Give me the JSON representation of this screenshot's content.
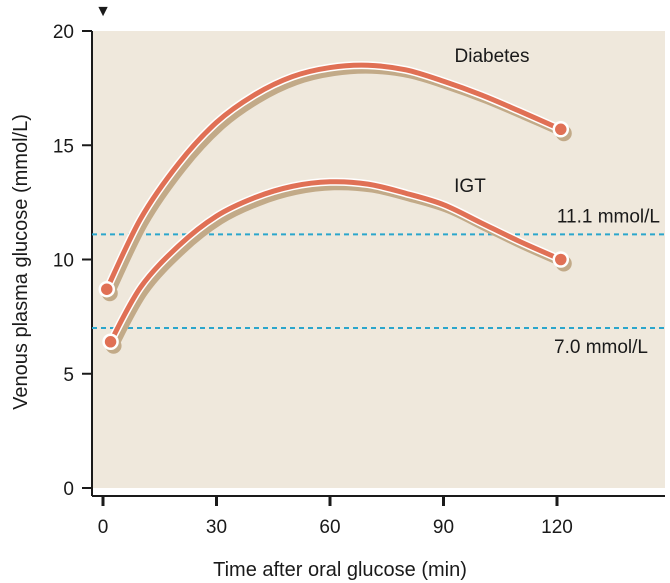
{
  "chart_data": {
    "type": "line",
    "title": "",
    "xlabel": "Time after oral glucose (min)",
    "ylabel": "Venous plasma glucose (mmol/L)",
    "xlim": [
      0,
      150
    ],
    "ylim": [
      0,
      20
    ],
    "x_ticks": [
      0,
      30,
      60,
      90,
      120
    ],
    "y_ticks": [
      0,
      5,
      10,
      15,
      20
    ],
    "grid": false,
    "background_color": "#efe8dc",
    "start_marker": "▼",
    "series": [
      {
        "name": "Diabetes",
        "color": "#e07055",
        "shadow_color": "#c2aa88",
        "x": [
          1,
          10,
          20,
          30,
          40,
          50,
          60,
          70,
          80,
          90,
          100,
          110,
          121
        ],
        "y": [
          8.7,
          11.8,
          14.2,
          16.0,
          17.2,
          18.0,
          18.4,
          18.5,
          18.3,
          17.8,
          17.2,
          16.5,
          15.7
        ]
      },
      {
        "name": "IGT",
        "color": "#e07055",
        "shadow_color": "#c2aa88",
        "x": [
          2,
          10,
          20,
          30,
          40,
          50,
          60,
          70,
          80,
          90,
          100,
          110,
          121
        ],
        "y": [
          6.4,
          8.8,
          10.6,
          11.9,
          12.7,
          13.2,
          13.4,
          13.3,
          12.9,
          12.4,
          11.6,
          10.8,
          10.0
        ]
      }
    ],
    "thresholds": [
      {
        "label": "11.1 mmol/L",
        "value": 11.1,
        "color": "#2ba6cc"
      },
      {
        "label": "7.0 mmol/L",
        "value": 7.0,
        "color": "#2ba6cc"
      }
    ]
  }
}
